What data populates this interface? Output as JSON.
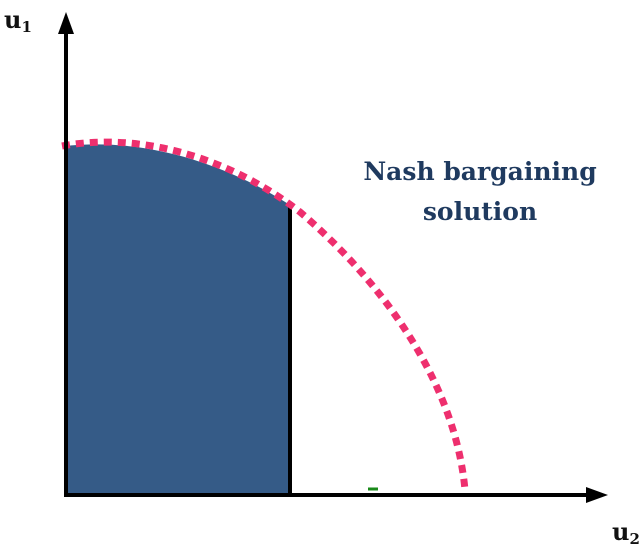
{
  "diagram": {
    "axes": {
      "y_label_main": "u",
      "y_label_sub": "1",
      "x_label_main": "u",
      "x_label_sub": "2"
    },
    "annotation": {
      "line1": "Nash bargaining",
      "line2": "solution"
    },
    "colors": {
      "region_fill": "#355b87",
      "frontier_dots": "#ee2f6e",
      "axis": "#000000",
      "annotation_text": "#1f3a5f",
      "marker": "#1a8a1a"
    }
  }
}
